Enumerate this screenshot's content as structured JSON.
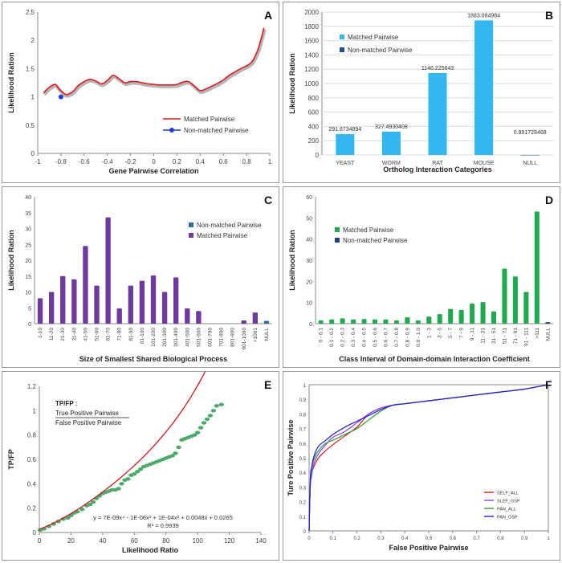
{
  "chart_data": [
    {
      "panel": "A",
      "type": "line",
      "xlabel": "Gene Pairwise Correlation",
      "ylabel": "Likelihood Ration",
      "xlim": [
        -1,
        1
      ],
      "ylim": [
        0,
        2.5
      ],
      "xticks": [
        "-1",
        "-0.8",
        "-0.6",
        "-0.4",
        "-0.2",
        "0",
        "0.2",
        "0.4",
        "0.6",
        "0.8",
        "1"
      ],
      "yticks": [
        "0",
        "0.5",
        "1",
        "1.5",
        "2",
        "2.5"
      ],
      "legend": "bottom-right",
      "series": [
        {
          "name": "Matched Pairwise",
          "color": "#e31a1c",
          "x": [
            -0.95,
            -0.9,
            -0.85,
            -0.82,
            -0.78,
            -0.75,
            -0.7,
            -0.65,
            -0.6,
            -0.55,
            -0.5,
            -0.45,
            -0.4,
            -0.35,
            -0.3,
            -0.25,
            -0.2,
            -0.15,
            -0.1,
            -0.05,
            0,
            0.05,
            0.1,
            0.15,
            0.2,
            0.25,
            0.3,
            0.35,
            0.4,
            0.45,
            0.5,
            0.55,
            0.6,
            0.65,
            0.7,
            0.75,
            0.8,
            0.85,
            0.9,
            0.95
          ],
          "y": [
            1.07,
            1.17,
            1.22,
            1.15,
            1.07,
            1.04,
            1.09,
            1.2,
            1.27,
            1.31,
            1.28,
            1.23,
            1.29,
            1.38,
            1.32,
            1.25,
            1.27,
            1.27,
            1.25,
            1.23,
            1.22,
            1.21,
            1.21,
            1.21,
            1.22,
            1.26,
            1.27,
            1.19,
            1.11,
            1.14,
            1.19,
            1.24,
            1.3,
            1.38,
            1.44,
            1.5,
            1.55,
            1.63,
            1.85,
            2.22
          ]
        },
        {
          "name": "Non-matched Pairwise",
          "color": "#1f3fd6",
          "x": [
            -0.8
          ],
          "y": [
            1.0
          ]
        }
      ]
    },
    {
      "panel": "B",
      "type": "bar",
      "xlabel": "Ortholog Interaction Categories",
      "ylabel": "Likelihood Ration",
      "ylim": [
        0,
        2000
      ],
      "yticks": [
        "0",
        "200",
        "400",
        "600",
        "800",
        "1000",
        "1200",
        "1400",
        "1600",
        "1800",
        "2000"
      ],
      "categories": [
        "YEAST",
        "WORM",
        "RAT",
        "MOUSE",
        "NULL"
      ],
      "legend": "top-left",
      "series": [
        {
          "name": "Matched Pairwise",
          "color": "#33b7f0",
          "values": [
            291.6734894,
            327.4930408,
            1146.225643,
            1883.084984,
            null
          ]
        },
        {
          "name": "Non-matched Pairwise",
          "color": "#1d4f8c",
          "values": [
            null,
            null,
            null,
            null,
            0.991728468
          ]
        }
      ],
      "data_labels": [
        "291.6734894",
        "327.4930408",
        "1146.225643",
        "1883.084984",
        "0.991728468"
      ]
    },
    {
      "panel": "C",
      "type": "bar",
      "xlabel": "Size of Smallest Shared Biological Process",
      "ylabel": "Likelihood Ration",
      "ylim": [
        0,
        40
      ],
      "yticks": [
        "0",
        "5",
        "10",
        "15",
        "20",
        "25",
        "30",
        "35",
        "40"
      ],
      "categories": [
        "1-10",
        "11-20",
        "21-30",
        "31-40",
        "41-50",
        "51-60",
        "61-70",
        "71-80",
        "81-90",
        "91-100",
        "101-200",
        "201-300",
        "301-400",
        "401-500",
        "501-600",
        "601-700",
        "701-800",
        "801-900",
        "901-1000",
        ">1001",
        "NULL"
      ],
      "legend": "top-right",
      "series": [
        {
          "name": "Non-matched Pairwise",
          "color": "#2f6f9f",
          "values": [
            null,
            null,
            null,
            null,
            null,
            null,
            null,
            null,
            null,
            null,
            null,
            null,
            null,
            null,
            null,
            null,
            null,
            null,
            null,
            null,
            0.9
          ]
        },
        {
          "name": "Matched Pairwise",
          "color": "#6f3a9e",
          "values": [
            8,
            10,
            15,
            14,
            24.5,
            12,
            33.5,
            4.8,
            12,
            13.5,
            15.2,
            10,
            14.6,
            4.8,
            4,
            0,
            0,
            0,
            1,
            3.5,
            null
          ]
        }
      ]
    },
    {
      "panel": "D",
      "type": "bar",
      "xlabel": "Class Interval of Domain-domain Interaction Coefficient",
      "ylabel": "Likelihood Ration",
      "ylim": [
        0,
        60
      ],
      "yticks": [
        "0",
        "10",
        "20",
        "30",
        "40",
        "50",
        "60"
      ],
      "categories": [
        "0 - 0.1",
        "0.1 - 0.2",
        "0.2 - 0.3",
        "0.3 - 0.4",
        "0.4 - 0.5",
        "0.5 - 0.6",
        "0.6 - 0.7",
        "0.7 - 0.8",
        "0.8 - 0.9",
        "0.9 - 1.0",
        "1 - 3",
        "3 - 5",
        "5 - 7",
        "7 - 9",
        "9 - 11",
        "11 - 31",
        "31 - 51",
        "51 - 71",
        "71 - 91",
        "91 - 111",
        ">111",
        "NULL"
      ],
      "legend": "top-left",
      "series": [
        {
          "name": "Matched Pairwise",
          "color": "#1faa4f",
          "values": [
            1.5,
            2,
            2.5,
            2,
            2.2,
            2,
            2,
            1.5,
            3,
            1.5,
            3.3,
            4.5,
            7,
            6.5,
            9.5,
            10.2,
            5.8,
            26,
            22.3,
            15,
            53,
            null
          ]
        },
        {
          "name": "Non-matched Pairwise",
          "color": "#1d3f8c",
          "values": [
            null,
            null,
            null,
            null,
            null,
            null,
            null,
            null,
            null,
            null,
            null,
            null,
            null,
            null,
            null,
            null,
            null,
            null,
            null,
            null,
            null,
            0.7
          ]
        }
      ]
    },
    {
      "panel": "E",
      "type": "scatter",
      "xlabel": "Likelihood Ratio",
      "ylabel": "TP/FP",
      "xlim": [
        0,
        140
      ],
      "ylim": [
        0,
        1.2
      ],
      "xticks": [
        "0",
        "20",
        "40",
        "60",
        "80",
        "100",
        "120",
        "140"
      ],
      "yticks": [
        "0",
        "0.2",
        "0.4",
        "0.6",
        "0.8",
        "1",
        "1.2"
      ],
      "inset_title": "TP/FP :",
      "inset_numerator": "True Positive Pairwise",
      "inset_denominator": "False Positive Pairwise",
      "equation": "y = 7E-09x⁴ - 1E-06x³ + 1E-04x² + 0.0048x + 0.0265",
      "r_squared": "R² = 0.9939",
      "fit": {
        "color": "#d7191c",
        "coefficients": [
          7e-09,
          -1e-06,
          0.0001,
          0.0048,
          0.0265
        ],
        "xrange": [
          0,
          114
        ]
      },
      "series": [
        {
          "name": "",
          "color": "#4daa6b",
          "x": [
            0.5,
            3,
            6,
            9,
            12,
            15,
            18,
            20,
            22,
            24,
            27,
            30,
            32,
            34,
            36,
            38,
            40,
            42,
            44,
            46,
            48,
            50,
            52,
            54,
            56,
            58,
            60,
            62,
            64,
            66,
            68,
            70,
            72,
            74,
            76,
            78,
            80,
            82,
            84,
            86,
            88,
            90,
            92,
            94,
            96,
            98,
            100,
            102,
            104,
            106,
            108,
            110,
            112,
            115
          ],
          "y": [
            0.02,
            0.03,
            0.05,
            0.07,
            0.09,
            0.11,
            0.12,
            0.14,
            0.16,
            0.17,
            0.19,
            0.22,
            0.23,
            0.25,
            0.28,
            0.3,
            0.32,
            0.33,
            0.34,
            0.35,
            0.35,
            0.36,
            0.4,
            0.43,
            0.44,
            0.47,
            0.48,
            0.5,
            0.52,
            0.54,
            0.55,
            0.56,
            0.57,
            0.58,
            0.59,
            0.6,
            0.61,
            0.62,
            0.63,
            0.65,
            0.7,
            0.76,
            0.77,
            0.78,
            0.79,
            0.8,
            0.82,
            0.86,
            0.9,
            0.93,
            0.96,
            1.0,
            1.04,
            1.05
          ]
        }
      ]
    },
    {
      "panel": "F",
      "type": "line",
      "xlabel": "False Positive Pairwise",
      "ylabel": "Ture Positive Pairwise",
      "xlim": [
        0,
        1
      ],
      "ylim": [
        0,
        1
      ],
      "xticks": [
        "0",
        "0.1",
        "0.2",
        "0.3",
        "0.4",
        "0.5",
        "0.6",
        "0.7",
        "0.8",
        "0.9",
        "1"
      ],
      "yticks": [
        "0",
        "0.1",
        "0.2",
        "0.3",
        "0.4",
        "0.5",
        "0.6",
        "0.7",
        "0.8",
        "0.9",
        "1"
      ],
      "legend": "bottom-right",
      "series": [
        {
          "name": "SELF_ALL",
          "color": "#e31a1c",
          "x": [
            0,
            0.005,
            0.01,
            0.02,
            0.04,
            0.07,
            0.1,
            0.15,
            0.2,
            0.25,
            0.3,
            0.35,
            0.4,
            0.5,
            0.6,
            0.7,
            0.8,
            0.9,
            1.0
          ],
          "y": [
            0,
            0.32,
            0.39,
            0.44,
            0.5,
            0.55,
            0.59,
            0.65,
            0.71,
            0.8,
            0.84,
            0.86,
            0.87,
            0.89,
            0.91,
            0.93,
            0.95,
            0.97,
            1.0
          ]
        },
        {
          "name": "SLEF_GSP",
          "color": "#8e44ff",
          "x": [
            0,
            0.005,
            0.01,
            0.02,
            0.04,
            0.07,
            0.1,
            0.15,
            0.2,
            0.25,
            0.3,
            0.35,
            0.4,
            0.5,
            0.6,
            0.7,
            0.8,
            0.9,
            1.0
          ],
          "y": [
            0,
            0.3,
            0.37,
            0.46,
            0.53,
            0.59,
            0.64,
            0.68,
            0.74,
            0.8,
            0.84,
            0.86,
            0.87,
            0.89,
            0.91,
            0.93,
            0.95,
            0.97,
            1.0
          ]
        },
        {
          "name": "PAN_ALL",
          "color": "#2ca02c",
          "x": [
            0,
            0.005,
            0.01,
            0.02,
            0.04,
            0.07,
            0.1,
            0.15,
            0.2,
            0.25,
            0.3,
            0.35,
            0.4,
            0.5,
            0.6,
            0.7,
            0.8,
            0.9,
            1.0
          ],
          "y": [
            0,
            0.33,
            0.41,
            0.49,
            0.55,
            0.6,
            0.62,
            0.66,
            0.7,
            0.76,
            0.82,
            0.86,
            0.87,
            0.89,
            0.91,
            0.93,
            0.95,
            0.97,
            1.0
          ]
        },
        {
          "name": "PAN_GSP",
          "color": "#1f1fd6",
          "x": [
            0,
            0.005,
            0.01,
            0.02,
            0.04,
            0.07,
            0.1,
            0.15,
            0.2,
            0.25,
            0.3,
            0.35,
            0.4,
            0.5,
            0.6,
            0.7,
            0.8,
            0.9,
            1.0
          ],
          "y": [
            0,
            0.36,
            0.43,
            0.51,
            0.58,
            0.62,
            0.66,
            0.71,
            0.75,
            0.79,
            0.83,
            0.86,
            0.87,
            0.89,
            0.91,
            0.93,
            0.95,
            0.97,
            1.0
          ]
        }
      ]
    }
  ]
}
